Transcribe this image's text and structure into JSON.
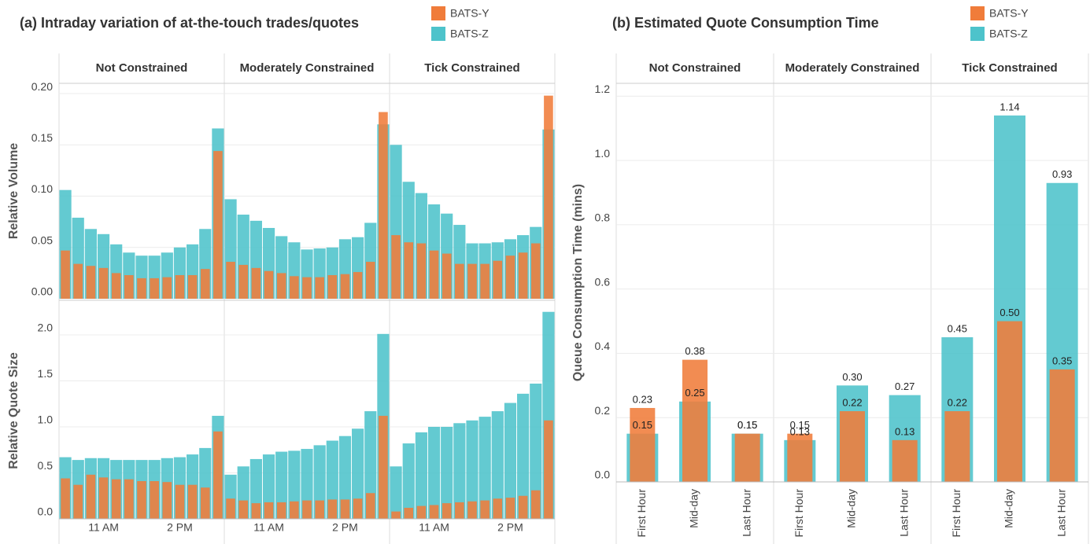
{
  "chart_data": [
    {
      "type": "bar",
      "title": "(a) Intraday variation of at-the-touch trades/quotes",
      "facets": [
        "Not Constrained",
        "Moderately Constrained",
        "Tick Constrained"
      ],
      "categories": [
        null,
        null,
        null,
        "11 AM",
        null,
        null,
        null,
        null,
        null,
        "2 PM",
        null,
        null,
        null
      ],
      "grid": true,
      "rows": [
        {
          "ylabel": "Relative Volume",
          "ylim": [
            0,
            0.21
          ],
          "yticks": [
            {
              "value": 0,
              "label": "0.00"
            },
            {
              "value": 0.05,
              "label": "0.05"
            },
            {
              "value": 0.1,
              "label": "0.10"
            },
            {
              "value": 0.15,
              "label": "0.15"
            },
            {
              "value": 0.2,
              "label": "0.20"
            }
          ]
        },
        {
          "ylabel": "Relative Quote Size",
          "ylim": [
            0,
            2.35
          ],
          "yticks": [
            {
              "value": 0,
              "label": "0.0"
            },
            {
              "value": 0.5,
              "label": "0.5"
            },
            {
              "value": 1,
              "label": "1.0"
            },
            {
              "value": 1.5,
              "label": "1.5"
            },
            {
              "value": 2,
              "label": "2.0"
            }
          ]
        }
      ],
      "series": [
        {
          "name": "BATS-Y",
          "color": "#f07c3a",
          "values": [
            [
              [
                0.047,
                0.034,
                0.032,
                0.03,
                0.025,
                0.023,
                0.02,
                0.02,
                0.021,
                0.023,
                0.023,
                0.029,
                0.144
              ],
              [
                0.036,
                0.033,
                0.03,
                0.027,
                0.025,
                0.022,
                0.021,
                0.021,
                0.023,
                0.024,
                0.026,
                0.036,
                0.182
              ],
              [
                0.062,
                0.055,
                0.054,
                0.047,
                0.044,
                0.034,
                0.034,
                0.034,
                0.037,
                0.042,
                0.045,
                0.054,
                0.198
              ]
            ],
            [
              [
                0.44,
                0.37,
                0.48,
                0.45,
                0.43,
                0.43,
                0.41,
                0.41,
                0.4,
                0.37,
                0.37,
                0.34,
                0.95
              ],
              [
                0.22,
                0.2,
                0.17,
                0.18,
                0.18,
                0.19,
                0.2,
                0.2,
                0.21,
                0.21,
                0.22,
                0.28,
                1.12
              ],
              [
                0.08,
                0.12,
                0.14,
                0.15,
                0.17,
                0.18,
                0.19,
                0.2,
                0.22,
                0.23,
                0.25,
                0.31,
                1.07
              ]
            ]
          ]
        },
        {
          "name": "BATS-Z",
          "color": "#4dc3cb",
          "values": [
            [
              [
                0.106,
                0.079,
                0.068,
                0.063,
                0.053,
                0.045,
                0.042,
                0.042,
                0.045,
                0.05,
                0.053,
                0.068,
                0.166
              ],
              [
                0.097,
                0.082,
                0.076,
                0.069,
                0.061,
                0.055,
                0.048,
                0.049,
                0.05,
                0.058,
                0.06,
                0.074,
                0.17
              ],
              [
                0.15,
                0.114,
                0.103,
                0.092,
                0.083,
                0.072,
                0.054,
                0.054,
                0.055,
                0.058,
                0.062,
                0.07,
                0.165
              ]
            ],
            [
              [
                0.67,
                0.64,
                0.66,
                0.66,
                0.64,
                0.64,
                0.64,
                0.64,
                0.66,
                0.67,
                0.7,
                0.77,
                1.12
              ],
              [
                0.48,
                0.57,
                0.65,
                0.7,
                0.73,
                0.74,
                0.76,
                0.8,
                0.85,
                0.9,
                0.98,
                1.17,
                2.01
              ],
              [
                0.57,
                0.82,
                0.94,
                1.0,
                1.0,
                1.04,
                1.07,
                1.11,
                1.17,
                1.26,
                1.36,
                1.47,
                2.25
              ]
            ]
          ]
        }
      ]
    },
    {
      "type": "bar",
      "title": "(b) Estimated Quote Consumption Time",
      "facets": [
        "Not Constrained",
        "Moderately Constrained",
        "Tick Constrained"
      ],
      "categories": [
        "First Hour",
        "Mid-day",
        "Last Hour"
      ],
      "grid": true,
      "rows": [
        {
          "ylabel": "Queue Consumption Time (mins)",
          "ylim": [
            0,
            1.24
          ],
          "yticks": [
            {
              "value": 0,
              "label": "0.0"
            },
            {
              "value": 0.2,
              "label": "0.2"
            },
            {
              "value": 0.4,
              "label": "0.4"
            },
            {
              "value": 0.6,
              "label": "0.6"
            },
            {
              "value": 0.8,
              "label": "0.8"
            },
            {
              "value": 1,
              "label": "1.0"
            },
            {
              "value": 1.2,
              "label": "1.2"
            }
          ]
        }
      ],
      "series": [
        {
          "name": "BATS-Y",
          "color": "#f07c3a",
          "values": [
            [
              [
                0.23,
                0.38,
                0.15
              ],
              [
                0.15,
                0.22,
                0.13
              ],
              [
                0.22,
                0.5,
                0.35
              ]
            ]
          ],
          "value_labels": [
            [
              [
                "0.23",
                "0.38",
                "0.15"
              ],
              [
                "0.15",
                "0.22",
                "0.13"
              ],
              [
                "0.22",
                "0.50",
                "0.35"
              ]
            ]
          ]
        },
        {
          "name": "BATS-Z",
          "color": "#4dc3cb",
          "values": [
            [
              [
                0.15,
                0.25,
                0.15
              ],
              [
                0.13,
                0.3,
                0.27
              ],
              [
                0.45,
                1.14,
                0.93
              ]
            ]
          ],
          "value_labels": [
            [
              [
                "0.15",
                "0.25",
                "0.15"
              ],
              [
                "0.13",
                "0.30",
                "0.27"
              ],
              [
                "0.45",
                "1.14",
                "0.93"
              ]
            ]
          ]
        }
      ]
    }
  ]
}
